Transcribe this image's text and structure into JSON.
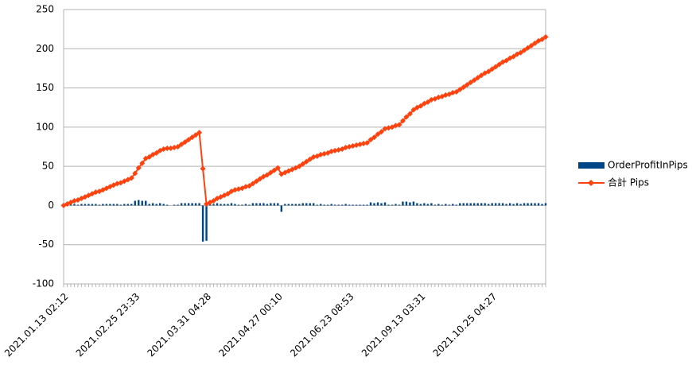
{
  "chart_data": {
    "type": "combo",
    "categories": [
      "2021.01.13 02:12",
      null,
      null,
      null,
      null,
      null,
      null,
      null,
      null,
      null,
      null,
      null,
      null,
      null,
      null,
      null,
      null,
      null,
      null,
      null,
      "2021.02.25 23:33",
      null,
      null,
      null,
      null,
      null,
      null,
      null,
      null,
      null,
      null,
      null,
      null,
      null,
      null,
      null,
      null,
      null,
      null,
      null,
      "2021.03.31 04:28",
      null,
      null,
      null,
      null,
      null,
      null,
      null,
      null,
      null,
      null,
      null,
      null,
      null,
      null,
      null,
      null,
      null,
      null,
      null,
      "2021.04.27 00:10",
      null,
      null,
      null,
      null,
      null,
      null,
      null,
      null,
      null,
      null,
      null,
      null,
      null,
      null,
      null,
      null,
      null,
      null,
      null,
      "2021.06.23 08:53",
      null,
      null,
      null,
      null,
      null,
      null,
      null,
      null,
      null,
      null,
      null,
      null,
      null,
      null,
      null,
      null,
      null,
      null,
      null,
      "2021.09.13 03:31",
      null,
      null,
      null,
      null,
      null,
      null,
      null,
      null,
      null,
      null,
      null,
      null,
      null,
      null,
      null,
      null,
      null,
      null,
      null,
      "2021.10.25 04:27",
      null,
      null,
      null,
      null,
      null,
      null,
      null,
      null,
      null,
      null,
      null,
      null,
      null,
      null,
      null
    ],
    "series": [
      {
        "name": "OrderProfitInPips",
        "type": "bar",
        "color": "#004586",
        "values": [
          0,
          2,
          2,
          2,
          1,
          2,
          2,
          2,
          2,
          2,
          1,
          2,
          2,
          2,
          2,
          2,
          1,
          2,
          2,
          2,
          6,
          7,
          6,
          6,
          2,
          3,
          2,
          3,
          2,
          1,
          0,
          1,
          1,
          3,
          3,
          3,
          3,
          3,
          3,
          -46,
          -45,
          2,
          2,
          3,
          2,
          2,
          2,
          3,
          2,
          1,
          1,
          2,
          1,
          3,
          3,
          3,
          3,
          2,
          3,
          3,
          3,
          -8,
          2,
          2,
          2,
          2,
          2,
          3,
          3,
          3,
          3,
          1,
          2,
          1,
          1,
          2,
          1,
          1,
          1,
          2,
          1,
          1,
          1,
          1,
          1,
          1,
          4,
          3,
          4,
          3,
          4,
          1,
          1,
          2,
          1,
          5,
          5,
          4,
          5,
          3,
          2,
          3,
          2,
          3,
          1,
          2,
          1,
          2,
          1,
          2,
          1,
          3,
          3,
          3,
          3,
          3,
          3,
          3,
          3,
          2,
          3,
          3,
          3,
          3,
          2,
          3,
          2,
          3,
          2,
          3,
          3,
          3,
          3,
          3,
          2,
          3
        ]
      },
      {
        "name": "合計 Pips",
        "type": "line",
        "color": "#ff420e",
        "values": [
          0,
          2,
          4,
          6,
          7,
          9,
          11,
          13,
          15,
          17,
          18,
          20,
          22,
          24,
          26,
          28,
          29,
          31,
          33,
          35,
          41,
          48,
          54,
          60,
          62,
          65,
          67,
          70,
          72,
          73,
          73,
          74,
          75,
          78,
          81,
          84,
          87,
          90,
          93,
          47,
          2,
          4,
          6,
          9,
          11,
          13,
          15,
          18,
          20,
          21,
          22,
          24,
          25,
          28,
          31,
          34,
          37,
          39,
          42,
          45,
          48,
          40,
          42,
          44,
          46,
          48,
          50,
          53,
          56,
          59,
          62,
          63,
          65,
          66,
          67,
          69,
          70,
          71,
          72,
          74,
          75,
          76,
          77,
          78,
          79,
          80,
          84,
          87,
          91,
          94,
          98,
          99,
          100,
          102,
          103,
          108,
          113,
          117,
          122,
          125,
          127,
          130,
          132,
          135,
          136,
          138,
          139,
          141,
          142,
          144,
          145,
          148,
          151,
          154,
          157,
          160,
          163,
          166,
          169,
          171,
          174,
          177,
          180,
          183,
          185,
          188,
          190,
          193,
          195,
          198,
          201,
          204,
          207,
          210,
          212,
          215
        ]
      }
    ],
    "ylim": [
      -100,
      250
    ],
    "yticks": [
      -100,
      -50,
      0,
      50,
      100,
      150,
      200,
      250
    ],
    "grid": true,
    "legend": "right"
  }
}
